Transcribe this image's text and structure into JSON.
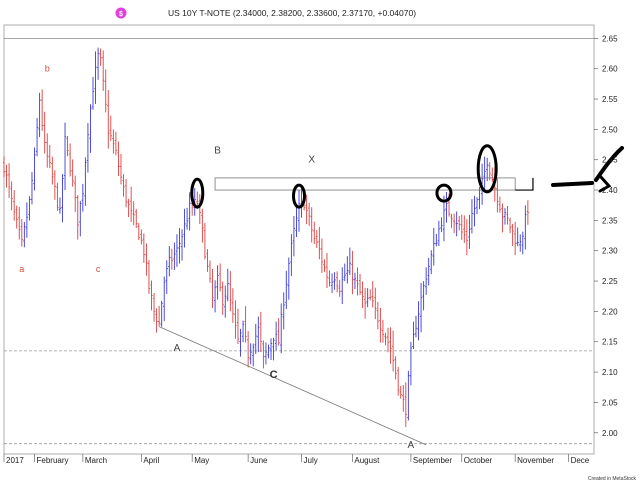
{
  "chart_data": {
    "type": "bar",
    "subtype": "ohlc",
    "title": "US 10Y T-NOTE (2.34000, 2.38200, 2.33600, 2.37170, +0.04070)",
    "credit": "Created in MetaStock",
    "logo_icon": "metastock-logo-icon",
    "ylim": [
      1.965,
      2.672
    ],
    "y_ticks": [
      "2.65",
      "2.60",
      "2.55",
      "2.50",
      "2.45",
      "2.40",
      "2.35",
      "2.30",
      "2.25",
      "2.20",
      "2.15",
      "2.10",
      "2.05",
      "2.00"
    ],
    "x_ticks": [
      {
        "label": "2017",
        "t": 0
      },
      {
        "label": "February",
        "t": 12
      },
      {
        "label": "March",
        "t": 31
      },
      {
        "label": "April",
        "t": 54
      },
      {
        "label": "May",
        "t": 74
      },
      {
        "label": "June",
        "t": 96
      },
      {
        "label": "July",
        "t": 117
      },
      {
        "label": "August",
        "t": 137
      },
      {
        "label": "September",
        "t": 160
      },
      {
        "label": "October",
        "t": 180
      },
      {
        "label": "November",
        "t": 201
      },
      {
        "label": "Dece",
        "t": 222
      }
    ],
    "x_range": [
      0,
      232
    ],
    "series": [
      {
        "values": [
          [
            0,
            2.44
          ],
          [
            4,
            2.36
          ],
          [
            7,
            2.31
          ],
          [
            10,
            2.38
          ],
          [
            12,
            2.45
          ],
          [
            14,
            2.55
          ],
          [
            16,
            2.47
          ],
          [
            19,
            2.42
          ],
          [
            22,
            2.36
          ],
          [
            24,
            2.48
          ],
          [
            26,
            2.44
          ],
          [
            29,
            2.35
          ],
          [
            31,
            2.4
          ],
          [
            33,
            2.5
          ],
          [
            35,
            2.57
          ],
          [
            37,
            2.62
          ],
          [
            38,
            2.61
          ],
          [
            41,
            2.5
          ],
          [
            44,
            2.46
          ],
          [
            47,
            2.4
          ],
          [
            50,
            2.36
          ],
          [
            53,
            2.33
          ],
          [
            55,
            2.3
          ],
          [
            57,
            2.24
          ],
          [
            59,
            2.2
          ],
          [
            61,
            2.18
          ],
          [
            63,
            2.25
          ],
          [
            65,
            2.28
          ],
          [
            68,
            2.3
          ],
          [
            71,
            2.34
          ],
          [
            73,
            2.37
          ],
          [
            76,
            2.38
          ],
          [
            78,
            2.33
          ],
          [
            80,
            2.27
          ],
          [
            82,
            2.22
          ],
          [
            84,
            2.25
          ],
          [
            86,
            2.22
          ],
          [
            88,
            2.24
          ],
          [
            90,
            2.19
          ],
          [
            92,
            2.15
          ],
          [
            94,
            2.17
          ],
          [
            96,
            2.13
          ],
          [
            98,
            2.15
          ],
          [
            100,
            2.17
          ],
          [
            102,
            2.12
          ],
          [
            104,
            2.14
          ],
          [
            106,
            2.16
          ],
          [
            108,
            2.15
          ],
          [
            110,
            2.22
          ],
          [
            112,
            2.28
          ],
          [
            114,
            2.33
          ],
          [
            116,
            2.37
          ],
          [
            118,
            2.38
          ],
          [
            120,
            2.35
          ],
          [
            122,
            2.32
          ],
          [
            124,
            2.3
          ],
          [
            126,
            2.27
          ],
          [
            128,
            2.25
          ],
          [
            130,
            2.26
          ],
          [
            132,
            2.24
          ],
          [
            134,
            2.26
          ],
          [
            136,
            2.27
          ],
          [
            138,
            2.25
          ],
          [
            140,
            2.23
          ],
          [
            142,
            2.21
          ],
          [
            144,
            2.22
          ],
          [
            146,
            2.2
          ],
          [
            148,
            2.18
          ],
          [
            150,
            2.16
          ],
          [
            152,
            2.14
          ],
          [
            154,
            2.1
          ],
          [
            156,
            2.06
          ],
          [
            158,
            2.04
          ],
          [
            160,
            2.13
          ],
          [
            162,
            2.18
          ],
          [
            164,
            2.22
          ],
          [
            166,
            2.26
          ],
          [
            168,
            2.29
          ],
          [
            170,
            2.32
          ],
          [
            172,
            2.35
          ],
          [
            174,
            2.37
          ],
          [
            176,
            2.36
          ],
          [
            178,
            2.35
          ],
          [
            180,
            2.33
          ],
          [
            182,
            2.32
          ],
          [
            184,
            2.36
          ],
          [
            186,
            2.38
          ],
          [
            188,
            2.41
          ],
          [
            190,
            2.45
          ],
          [
            192,
            2.42
          ],
          [
            194,
            2.39
          ],
          [
            196,
            2.36
          ],
          [
            198,
            2.35
          ],
          [
            200,
            2.33
          ],
          [
            202,
            2.31
          ],
          [
            204,
            2.33
          ],
          [
            206,
            2.37
          ]
        ]
      }
    ],
    "wave_labels": [
      {
        "text": "b",
        "t": 17,
        "y": 2.595,
        "style": "red"
      },
      {
        "text": "a",
        "t": 7,
        "y": 2.265,
        "style": "red"
      },
      {
        "text": "c",
        "t": 37,
        "y": 2.265,
        "style": "red"
      },
      {
        "text": "B",
        "t": 84,
        "y": 2.46,
        "style": "dark"
      },
      {
        "text": "X",
        "t": 121,
        "y": 2.445,
        "style": "dark"
      },
      {
        "text": "A",
        "t": 68,
        "y": 2.135,
        "style": "dark"
      },
      {
        "text": "C",
        "t": 106,
        "y": 2.09,
        "style": "bold"
      },
      {
        "text": "A",
        "t": 160,
        "y": 1.975,
        "style": "dark"
      }
    ]
  }
}
